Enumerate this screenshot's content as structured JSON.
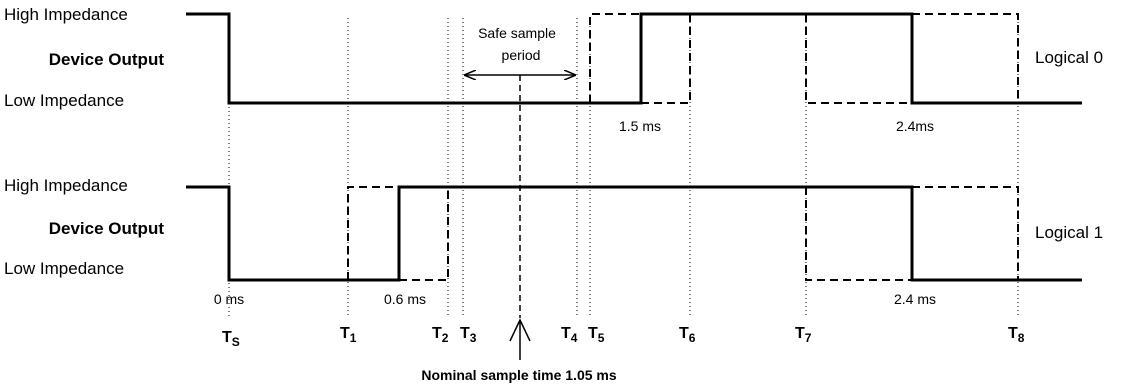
{
  "logical0": {
    "high_label": "High Impedance",
    "device_label": "Device Output",
    "low_label": "Low Impedance",
    "name": "Logical 0",
    "ann_1": "1.5 ms",
    "ann_2": "2.4ms"
  },
  "logical1": {
    "high_label": "High Impedance",
    "device_label": "Device Output",
    "low_label": "Low Impedance",
    "name": "Logical 1",
    "ann_0": "0 ms",
    "ann_1": "0.6 ms",
    "ann_2": "2.4 ms"
  },
  "safe_sample": {
    "line1": "Safe sample",
    "line2": "period"
  },
  "nominal_sample": "Nominal sample time 1.05 ms",
  "time_markers": [
    {
      "main": "T",
      "sub": "S"
    },
    {
      "main": "T",
      "sub": "1"
    },
    {
      "main": "T",
      "sub": "2"
    },
    {
      "main": "T",
      "sub": "3"
    },
    {
      "main": "T",
      "sub": "4"
    },
    {
      "main": "T",
      "sub": "5"
    },
    {
      "main": "T",
      "sub": "6"
    },
    {
      "main": "T",
      "sub": "7"
    },
    {
      "main": "T",
      "sub": "8"
    }
  ]
}
